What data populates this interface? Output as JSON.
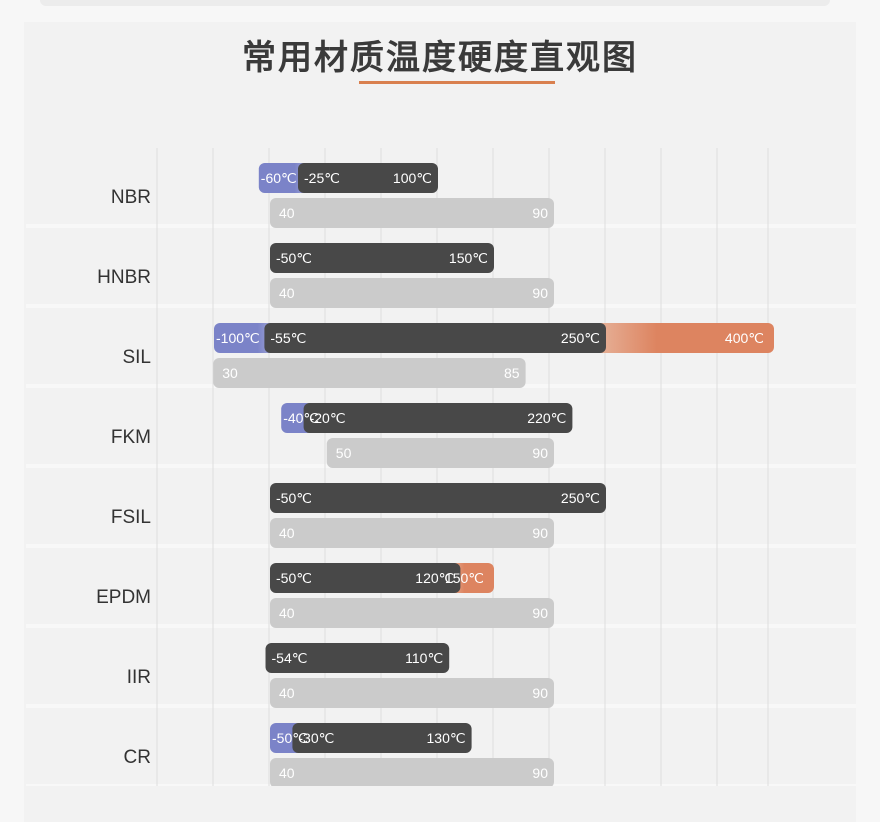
{
  "title": "常用材质温度硬度直观图",
  "colors": {
    "dark_bar": "#484848",
    "gray_bar": "#cbcbcb",
    "blue_bar": "#7b83c8",
    "orange_bar": "#dd8460",
    "gridline": "#dedede",
    "label": "#333333",
    "bar_text_dark": "#ffffff",
    "bar_text_gray": "#ffffff"
  },
  "chart_data": {
    "type": "bar",
    "categories": [
      "NBR",
      "HNBR",
      "SIL",
      "FKM",
      "FSIL",
      "EPDM",
      "IIR",
      "CR"
    ],
    "temperature_unit": "℃",
    "temperature_axis": [
      -150,
      450
    ],
    "hardness_axis": [
      -10,
      140
    ],
    "materials": [
      {
        "name": "NBR",
        "temp_low_ext": -60,
        "temp_low": -25,
        "temp_high": 100,
        "temp_high_ext": null,
        "labels": [
          "-60℃",
          "-25℃",
          "100℃",
          ""
        ],
        "hardness": [
          40,
          90
        ]
      },
      {
        "name": "HNBR",
        "temp_low_ext": null,
        "temp_low": -50,
        "temp_high": 150,
        "temp_high_ext": null,
        "labels": [
          "",
          "-50℃",
          "150℃",
          ""
        ],
        "hardness": [
          40,
          90
        ]
      },
      {
        "name": "SIL",
        "temp_low_ext": -100,
        "temp_low": -55,
        "temp_high": 250,
        "temp_high_ext": 400,
        "labels": [
          "-100℃",
          "-55℃",
          "250℃",
          "400℃"
        ],
        "hardness": [
          30,
          85
        ]
      },
      {
        "name": "FKM",
        "temp_low_ext": -40,
        "temp_low": -20,
        "temp_high": 220,
        "temp_high_ext": null,
        "labels": [
          "-40℃",
          "-20℃",
          "220℃",
          ""
        ],
        "hardness": [
          50,
          90
        ]
      },
      {
        "name": "FSIL",
        "temp_low_ext": null,
        "temp_low": -50,
        "temp_high": 250,
        "temp_high_ext": null,
        "labels": [
          "",
          "-50℃",
          "250℃",
          ""
        ],
        "hardness": [
          40,
          90
        ]
      },
      {
        "name": "EPDM",
        "temp_low_ext": null,
        "temp_low": -50,
        "temp_high": 120,
        "temp_high_ext": 150,
        "labels": [
          "",
          "-50℃",
          "120℃",
          "150℃"
        ],
        "hardness": [
          40,
          90
        ]
      },
      {
        "name": "IIR",
        "temp_low_ext": null,
        "temp_low": -54,
        "temp_high": 110,
        "temp_high_ext": null,
        "labels": [
          "",
          "-54℃",
          "110℃",
          ""
        ],
        "hardness": [
          40,
          90
        ]
      },
      {
        "name": "CR",
        "temp_low_ext": -50,
        "temp_low": -30,
        "temp_high": 130,
        "temp_high_ext": null,
        "labels": [
          "-50℃",
          "-30℃",
          "130℃",
          ""
        ],
        "hardness": [
          40,
          90
        ]
      }
    ]
  }
}
